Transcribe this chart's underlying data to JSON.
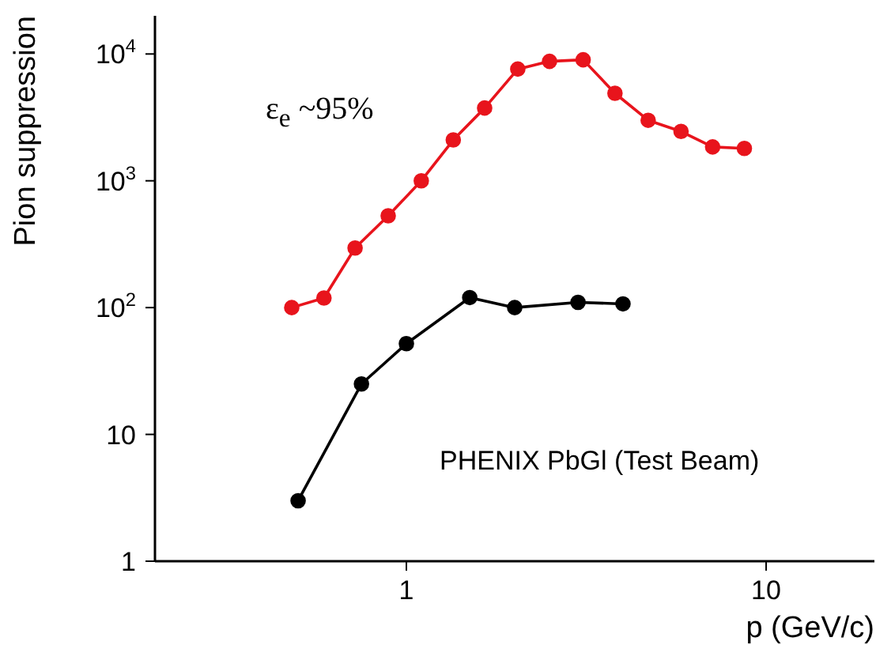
{
  "chart_data": {
    "type": "line",
    "xlabel": "p (GeV/c)",
    "ylabel": "Pion suppression",
    "annotations": [
      "ε$_{e}$ ~95%"
    ],
    "log": "xy",
    "xlim": [
      0.2,
      20
    ],
    "ylim": [
      1,
      20000
    ],
    "xticks": [
      1,
      10
    ],
    "yticks": [
      1,
      10,
      {
        "value": 100,
        "label": "10$^{2}$"
      },
      {
        "value": 1000,
        "label": "10$^{3}$"
      },
      {
        "value": 10000,
        "label": "10$^{4}$"
      }
    ],
    "grid": false,
    "legend": "bottom right",
    "marker": "circle",
    "line_style": "solid",
    "series": [
      {
        "color": "#e8141c",
        "x": [
          0.48,
          0.59,
          0.72,
          0.89,
          1.1,
          1.35,
          1.65,
          2.04,
          2.5,
          3.1,
          3.8,
          4.7,
          5.8,
          7.1,
          8.7
        ],
        "values": [
          100,
          119,
          295,
          530,
          1000,
          2100,
          3750,
          7600,
          8750,
          9000,
          4900,
          3000,
          2450,
          1850,
          1800
        ]
      },
      {
        "name": "PHENIX PbGl (Test Beam)",
        "color": "#000000",
        "x": [
          0.5,
          0.75,
          1.0,
          1.5,
          2.0,
          3.0,
          4.0
        ],
        "values": [
          3,
          25,
          52,
          120,
          100,
          110,
          107
        ]
      }
    ]
  }
}
